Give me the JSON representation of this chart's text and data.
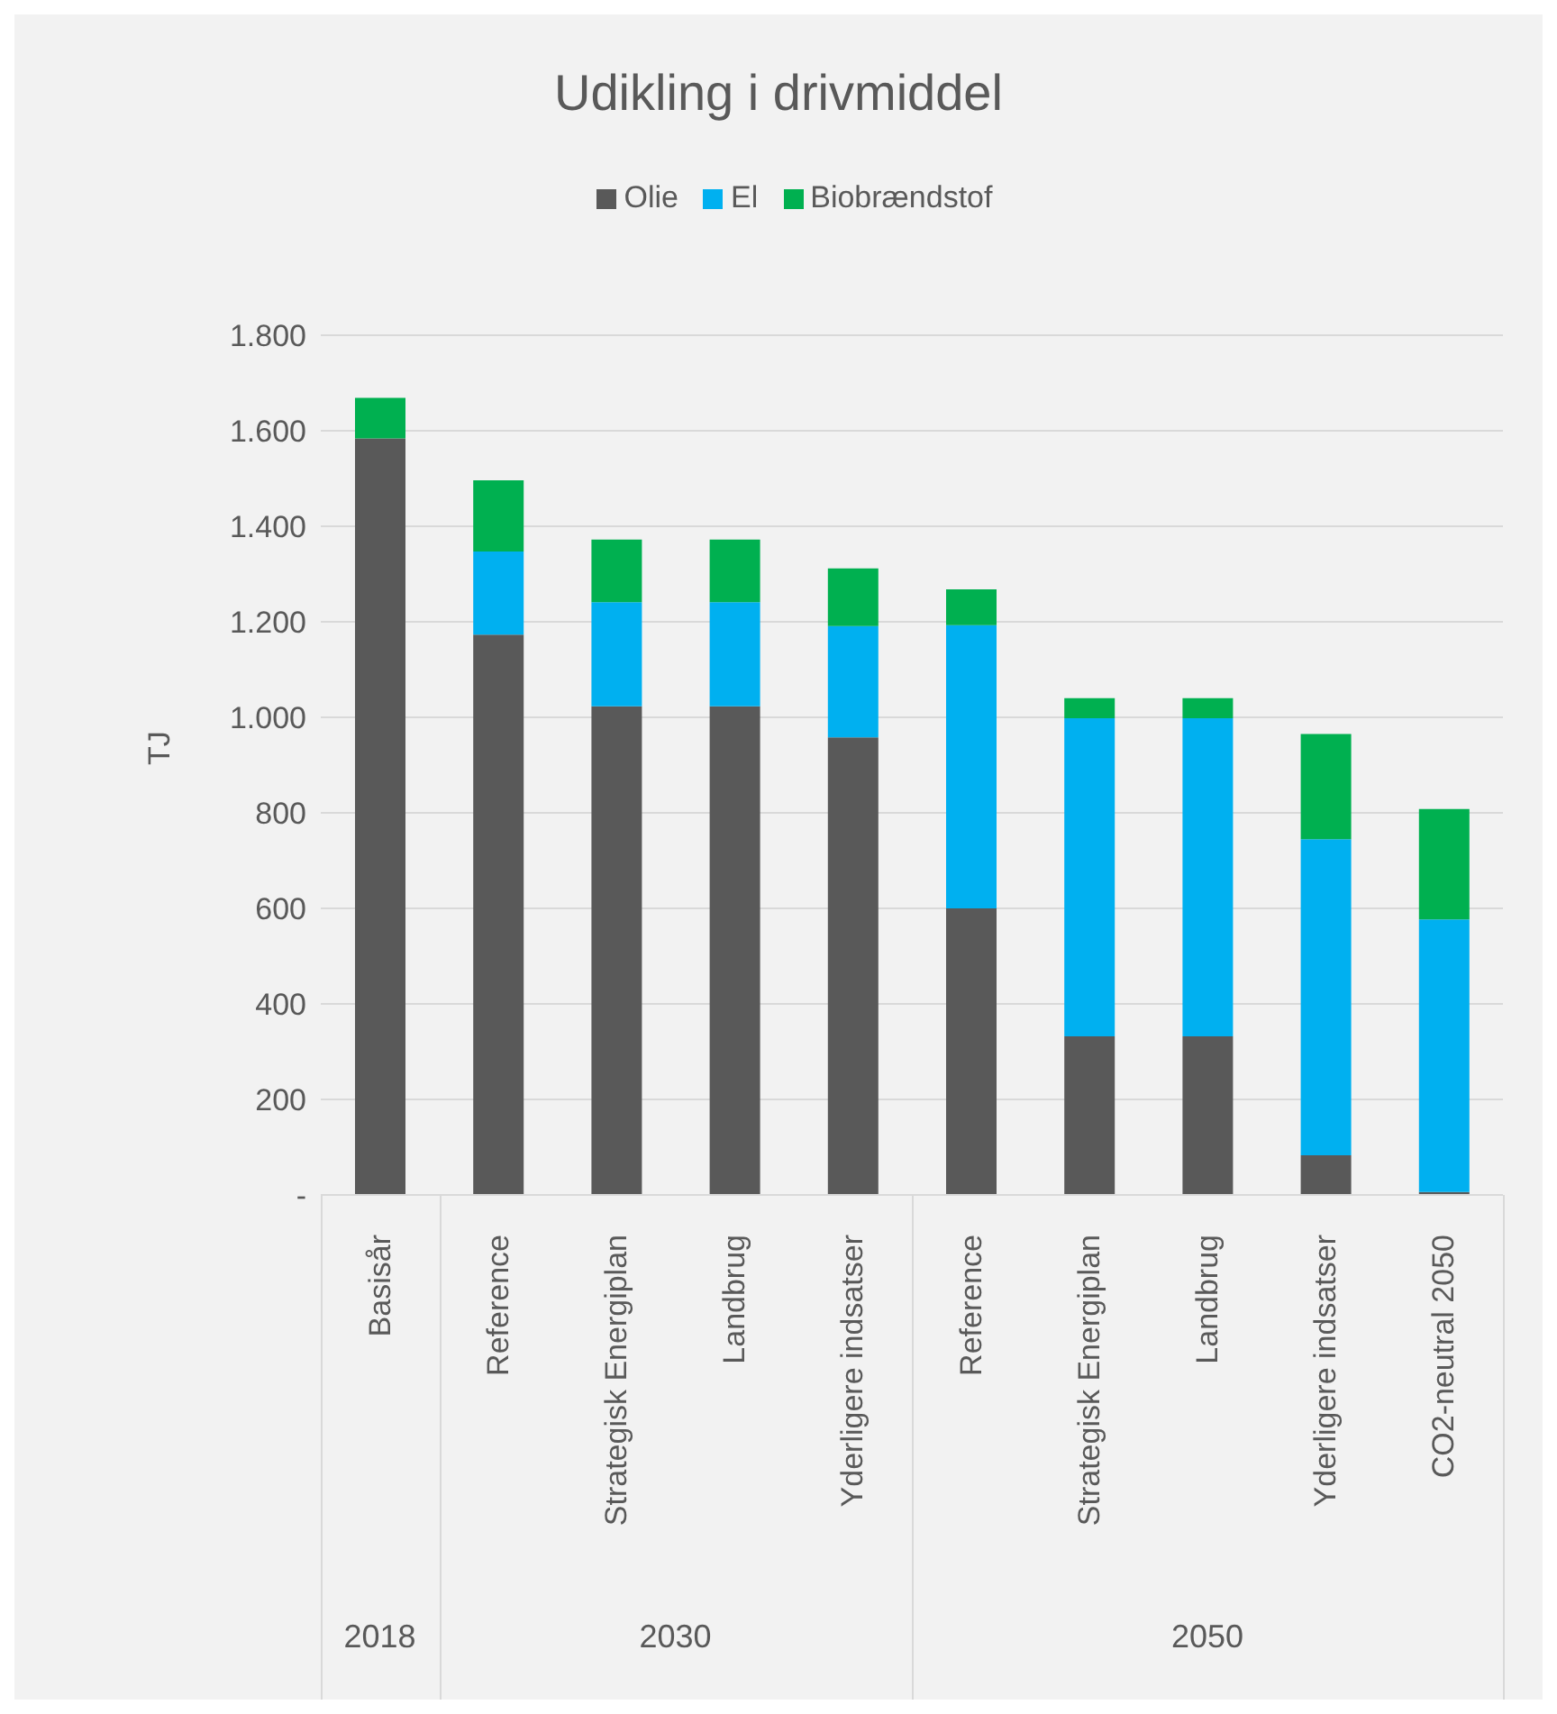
{
  "chart_data": {
    "type": "bar",
    "title": "Udikling i drivmiddel",
    "ylabel": "TJ",
    "stacked": true,
    "grid": "y",
    "legend": "top",
    "categories": [
      "Basisår",
      "Reference",
      "Strategisk Energiplan",
      "Landbrug",
      "Yderligere indsatser",
      "Reference",
      "Strategisk Energiplan",
      "Landbrug",
      "Yderligere indsatser",
      "CO2-neutral 2050"
    ],
    "annotations": [
      "2018",
      "2030",
      "2050"
    ],
    "ylim": [
      0,
      1800
    ],
    "yticks": [
      {
        "value": 0,
        "label": "-"
      },
      {
        "value": 200,
        "label": "200"
      },
      {
        "value": 400,
        "label": "400"
      },
      {
        "value": 600,
        "label": "600"
      },
      {
        "value": 800,
        "label": "800"
      },
      {
        "value": 1000,
        "label": "1.000"
      },
      {
        "value": 1200,
        "label": "1.200"
      },
      {
        "value": 1400,
        "label": "1.400"
      },
      {
        "value": 1600,
        "label": "1.600"
      },
      {
        "value": 1800,
        "label": "1.800"
      }
    ],
    "series": [
      {
        "name": "Olie",
        "color": "#595959",
        "values": [
          1584,
          1173,
          1023,
          1023,
          958,
          600,
          332,
          332,
          83,
          6
        ]
      },
      {
        "name": "El",
        "color": "#00b0f0",
        "values": [
          0,
          174,
          218,
          218,
          233,
          593,
          666,
          666,
          662,
          571
        ]
      },
      {
        "name": "Biobrændstof",
        "color": "#00b050",
        "values": [
          85,
          149,
          131,
          131,
          121,
          75,
          42,
          42,
          220,
          231
        ]
      }
    ]
  }
}
